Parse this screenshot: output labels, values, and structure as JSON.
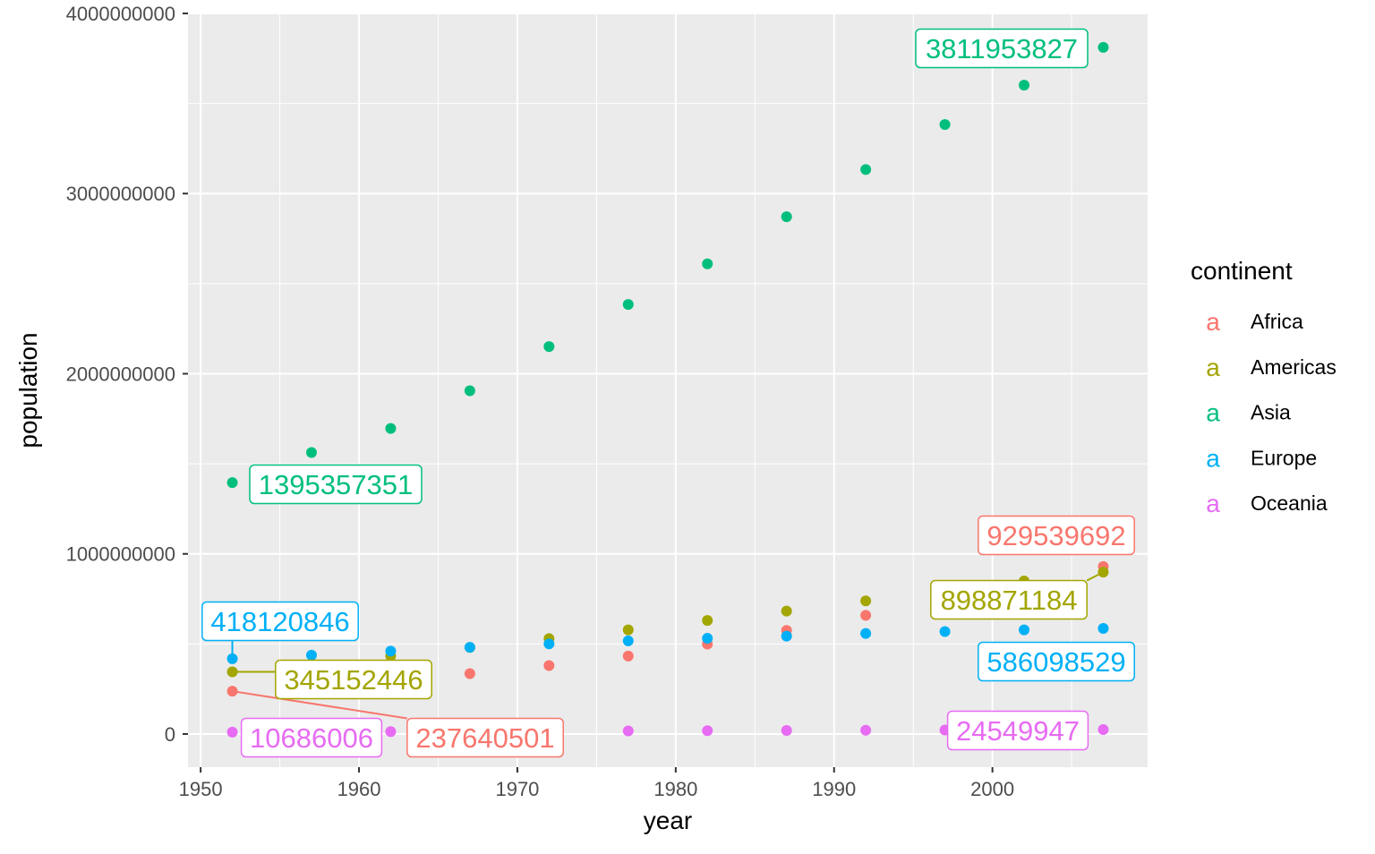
{
  "chart_data": {
    "type": "scatter",
    "title": "",
    "xlabel": "year",
    "ylabel": "population",
    "xlim": [
      1949.2,
      2009.8
    ],
    "ylim": [
      -184000000,
      4000000000
    ],
    "x_ticks": [
      1950,
      1960,
      1970,
      1980,
      1990,
      2000
    ],
    "x_tick_labels": [
      "1950",
      "1960",
      "1970",
      "1980",
      "1990",
      "2000"
    ],
    "y_ticks": [
      0,
      1000000000,
      2000000000,
      3000000000,
      4000000000
    ],
    "y_tick_labels": [
      "0",
      "1000000000",
      "2000000000",
      "3000000000",
      "4000000000"
    ],
    "grid": true,
    "legend": {
      "title": "continent",
      "position": "right",
      "key_glyph": "a"
    },
    "x": [
      1952,
      1957,
      1962,
      1967,
      1972,
      1977,
      1982,
      1987,
      1992,
      1997,
      2002,
      2007
    ],
    "series": [
      {
        "name": "Africa",
        "color": "#F8766D",
        "values": [
          237640501,
          264837738,
          296516865,
          335289489,
          379879541,
          433061021,
          499348587,
          574834110,
          659081517,
          743832984,
          833723916,
          929539692
        ]
      },
      {
        "name": "Americas",
        "color": "#A3A500",
        "values": [
          345152446,
          386953916,
          433270254,
          480746623,
          529384210,
          578067699,
          630290920,
          682753971,
          739274104,
          796900410,
          849772762,
          898871184
        ]
      },
      {
        "name": "Asia",
        "color": "#00BF7D",
        "values": [
          1395357351,
          1562780599,
          1696357182,
          1905662900,
          2150972248,
          2384513556,
          2610135582,
          2871220762,
          3133292191,
          3383285500,
          3601802203,
          3811953827
        ]
      },
      {
        "name": "Europe",
        "color": "#00B0F6",
        "values": [
          418120846,
          437890351,
          460355155,
          481178958,
          500635059,
          517164531,
          531266901,
          543094160,
          558142797,
          568944148,
          578223869,
          586098529
        ]
      },
      {
        "name": "Oceania",
        "color": "#E76BF3",
        "values": [
          10686006,
          11941976,
          13283518,
          14600414,
          16106100,
          17239000,
          18394850,
          19574415,
          20919651,
          22241430,
          23454829,
          24549947
        ]
      }
    ],
    "annotations": [
      {
        "series": "Asia",
        "year": 2007,
        "text": "3811953827"
      },
      {
        "series": "Asia",
        "year": 1952,
        "text": "1395357351"
      },
      {
        "series": "Africa",
        "year": 2007,
        "text": "929539692"
      },
      {
        "series": "Americas",
        "year": 2007,
        "text": "898871184"
      },
      {
        "series": "Europe",
        "year": 2007,
        "text": "586098529"
      },
      {
        "series": "Europe",
        "year": 1952,
        "text": "418120846"
      },
      {
        "series": "Americas",
        "year": 1952,
        "text": "345152446"
      },
      {
        "series": "Africa",
        "year": 1952,
        "text": "237640501"
      },
      {
        "series": "Oceania",
        "year": 1952,
        "text": "10686006"
      },
      {
        "series": "Oceania",
        "year": 2007,
        "text": "24549947"
      }
    ]
  }
}
